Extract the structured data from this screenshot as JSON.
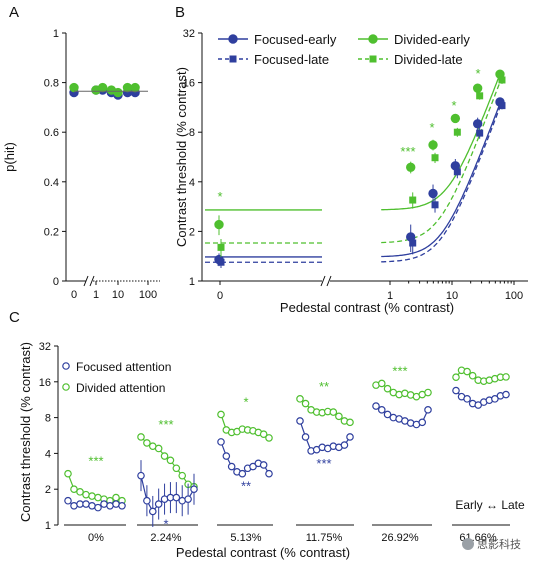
{
  "colors": {
    "focused": "#2f3f9e",
    "divided": "#4fbf2f"
  },
  "chart_data": [
    {
      "panel": "A",
      "type": "scatter",
      "ylabel": "p(hit)",
      "yticks": [
        "0",
        "0.2",
        "0.4",
        "0.6",
        "0.8",
        "1"
      ],
      "ylim": [
        0,
        1
      ],
      "xticks": [
        "0",
        "1",
        "10",
        "100"
      ],
      "series": [
        {
          "group": "focused",
          "x": [
            0,
            1,
            2,
            5,
            10,
            27,
            60
          ],
          "y": [
            0.76,
            0.77,
            0.77,
            0.76,
            0.75,
            0.76,
            0.76
          ]
        },
        {
          "group": "divided",
          "x": [
            0,
            1,
            2,
            5,
            10,
            27,
            60
          ],
          "y": [
            0.78,
            0.77,
            0.78,
            0.77,
            0.76,
            0.78,
            0.78
          ]
        }
      ]
    },
    {
      "panel": "B",
      "type": "line",
      "xlabel": "Pedestal contrast (% contrast)",
      "ylabel": "Contrast threshold (% contrast)",
      "yticks": [
        "1",
        "2",
        "4",
        "8",
        "16",
        "32"
      ],
      "yscale": "log2",
      "ylim": [
        1,
        32
      ],
      "xticks": [
        "0",
        "1",
        "10",
        "100"
      ],
      "xscale": "log10",
      "xlim": [
        0.7,
        110
      ],
      "legend_position": "top",
      "series": [
        {
          "name": "Focused-early",
          "group": "focused",
          "dashed": false,
          "x": [
            0,
            2.24,
            5.13,
            11.75,
            26.92,
            61.66
          ],
          "y": [
            1.35,
            1.85,
            3.4,
            5.0,
            9.0,
            12.2
          ],
          "err": [
            0.12,
            0.35,
            0.45,
            0.5,
            0.8,
            0.7
          ]
        },
        {
          "name": "Focused-late",
          "group": "focused",
          "dashed": true,
          "x": [
            0,
            2.24,
            5.13,
            11.75,
            26.92,
            61.66
          ],
          "y": [
            1.3,
            1.7,
            2.9,
            4.6,
            7.9,
            11.6
          ],
          "err": [
            0.1,
            0.25,
            0.3,
            0.4,
            0.6,
            0.6
          ]
        },
        {
          "name": "Divided-early",
          "group": "divided",
          "dashed": false,
          "x": [
            0,
            2.24,
            5.13,
            11.75,
            26.92,
            61.66
          ],
          "y": [
            2.2,
            4.9,
            6.7,
            9.7,
            14.8,
            18.0
          ],
          "err": [
            0.3,
            0.4,
            0.5,
            0.6,
            0.8,
            1.0
          ]
        },
        {
          "name": "Divided-late",
          "group": "divided",
          "dashed": true,
          "x": [
            0,
            2.24,
            5.13,
            11.75,
            26.92,
            61.66
          ],
          "y": [
            1.6,
            3.1,
            5.6,
            8.0,
            13.3,
            16.6
          ],
          "err": [
            0.2,
            0.35,
            0.4,
            0.5,
            0.7,
            0.9
          ]
        }
      ],
      "significance": [
        {
          "x": 0,
          "label": "*"
        },
        {
          "x": 2.24,
          "label": "***"
        },
        {
          "x": 5.13,
          "label": "*"
        },
        {
          "x": 11.75,
          "label": "*"
        },
        {
          "x": 26.92,
          "label": "*"
        }
      ]
    },
    {
      "panel": "C",
      "type": "line",
      "xlabel": "Pedestal contrast (% contrast)",
      "ylabel": "Contrast threshold (% contrast)",
      "yticks": [
        "1",
        "2",
        "4",
        "8",
        "16",
        "32"
      ],
      "yscale": "log2",
      "ylim": [
        1,
        32
      ],
      "legend": [
        "Focused attention",
        "Divided attention"
      ],
      "time_axis_label": "Early ↔ Late",
      "groups": [
        {
          "pedestal": "0%",
          "focused": [
            1.6,
            1.45,
            1.5,
            1.5,
            1.45,
            1.4,
            1.5,
            1.45,
            1.5,
            1.45
          ],
          "divided": [
            2.7,
            2.0,
            1.9,
            1.8,
            1.75,
            1.7,
            1.65,
            1.6,
            1.7,
            1.6
          ],
          "focused_sig": "",
          "divided_sig": "***"
        },
        {
          "pedestal": "2.24%",
          "focused": [
            2.6,
            1.6,
            1.3,
            1.5,
            1.65,
            1.7,
            1.7,
            1.6,
            1.65,
            2.0
          ],
          "divided": [
            5.5,
            4.9,
            4.6,
            4.4,
            3.8,
            3.5,
            3.0,
            2.6,
            2.2,
            2.1
          ],
          "focused_sig": "*",
          "divided_sig": "***"
        },
        {
          "pedestal": "5.13%",
          "focused": [
            5.0,
            3.8,
            3.1,
            2.8,
            2.7,
            3.0,
            3.1,
            3.3,
            3.2,
            2.7
          ],
          "divided": [
            8.5,
            6.3,
            6.0,
            6.1,
            6.4,
            6.3,
            6.2,
            6.0,
            5.8,
            5.4
          ],
          "focused_sig": "**",
          "divided_sig": "*"
        },
        {
          "pedestal": "11.75%",
          "focused": [
            7.5,
            5.5,
            4.2,
            4.3,
            4.5,
            4.4,
            4.6,
            4.5,
            4.7,
            5.5
          ],
          "divided": [
            11.5,
            10.5,
            9.3,
            8.9,
            8.8,
            9.0,
            8.9,
            8.2,
            7.5,
            7.3
          ],
          "focused_sig": "***",
          "divided_sig": "**"
        },
        {
          "pedestal": "26.92%",
          "focused": [
            10.0,
            9.3,
            8.5,
            8.0,
            7.8,
            7.5,
            7.2,
            7.0,
            7.3,
            9.3
          ],
          "divided": [
            15.0,
            15.5,
            14.0,
            13.0,
            12.5,
            12.8,
            12.4,
            12.0,
            12.5,
            13.0
          ],
          "focused_sig": "",
          "divided_sig": "***"
        },
        {
          "pedestal": "61.66%",
          "focused": [
            13.5,
            12.0,
            11.5,
            10.5,
            10.2,
            10.8,
            11.2,
            11.5,
            12.2,
            12.5
          ],
          "divided": [
            17.5,
            20.0,
            19.5,
            18.0,
            16.5,
            16.2,
            16.5,
            17.0,
            17.5,
            17.6
          ],
          "focused_sig": "",
          "divided_sig": ""
        }
      ]
    }
  ],
  "watermark": "思影科技"
}
